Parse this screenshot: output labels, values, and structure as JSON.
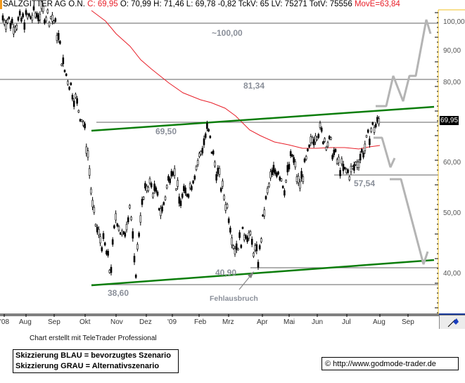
{
  "header": {
    "symbol": "SALZGITTER AG O.N.",
    "close_label": "C: 69,95",
    "quote_rest": "O: 70,99 H: 71,46 L: 69,78 -0,82 TckV: 65 LV: 75271 TotV: 75556",
    "moving_avg_label": "MovE=63,84"
  },
  "colors": {
    "price_bars": "#000000",
    "moving_average": "#e8202a",
    "trend_channel": "#0a7d0a",
    "horizontal_levels": "#808080",
    "scenario_sketch": "#b4b4b4",
    "axis_border": "#f0c020",
    "annotation_text": "#8a8f99"
  },
  "annotations": {
    "target_100": "~100,00",
    "resistance_8134": "81,34",
    "level_6950": "69,50",
    "support_5754": "57,54",
    "low_4090": "40,90",
    "low_3860": "38,60",
    "false_breakout": "Fehlausbruch"
  },
  "last_price_tag": "69,95",
  "footer": {
    "credit": "Chart erstellt mit TeleTrader Professional",
    "legend_blue": "Skizzierung BLAU = bevorzugtes Szenario",
    "legend_gray": "Skizzierung GRAU = Alternativszenario",
    "copyright": "© http://www.godmode-trader.de"
  },
  "icons": {
    "axis_tool": "pen-tool-icon"
  },
  "chart_data": {
    "type": "candlestick",
    "title": "SALZGITTER AG O.N.",
    "xlabel": "",
    "ylabel": "",
    "x_tick_labels": [
      "'08",
      "Aug",
      "Sep",
      "Okt",
      "Nov",
      "Dez",
      "'09",
      "Feb",
      "Mrz",
      "Apr",
      "Mai",
      "Jun",
      "Jul",
      "Aug",
      "Sep"
    ],
    "y_tick_labels": [
      "100,00",
      "90,00",
      "80,00",
      "60,00",
      "50,00",
      "40,00"
    ],
    "y_ticks": [
      100,
      90,
      80,
      60,
      50,
      40
    ],
    "ylim": [
      35,
      104
    ],
    "y_scale": "log",
    "grid": false,
    "quote": {
      "close": 69.95,
      "open": 70.99,
      "high": 71.46,
      "low": 69.78,
      "change": -0.82,
      "tick_volume": 65,
      "last_volume": 75271,
      "total_volume": 75556,
      "moving_average": 63.84
    },
    "approx_monthly_close": [
      {
        "month": "Jul 08",
        "value": 104
      },
      {
        "month": "Aug 08",
        "value": 101
      },
      {
        "month": "Sep 08",
        "value": 80
      },
      {
        "month": "Okt 08",
        "value": 47
      },
      {
        "month": "Nov 08",
        "value": 45
      },
      {
        "month": "Dez 08",
        "value": 55
      },
      {
        "month": "Jan 09",
        "value": 58
      },
      {
        "month": "Feb 09",
        "value": 58
      },
      {
        "month": "Mrz 09",
        "value": 44
      },
      {
        "month": "Apr 09",
        "value": 57
      },
      {
        "month": "Mai 09",
        "value": 62
      },
      {
        "month": "Jun 09",
        "value": 66
      },
      {
        "month": "Jul 09",
        "value": 64
      },
      {
        "month": "Aug 09",
        "value": 69.95
      }
    ],
    "horizontal_levels": [
      100.0,
      81.34,
      69.5,
      57.54,
      40.9,
      38.6
    ],
    "trend_channel": {
      "upper": [
        {
          "x": "Okt 08",
          "y": 67.5
        },
        {
          "x": "Sep 09",
          "y": 74.5
        }
      ],
      "lower": [
        {
          "x": "Okt 08",
          "y": 38.6
        },
        {
          "x": "Sep 09",
          "y": 41.3
        }
      ]
    },
    "moving_average_series": {
      "name": "MovE",
      "last": 63.84
    },
    "scenarios": [
      {
        "name": "bullish (grau)",
        "path": [
          71,
          71,
          80,
          75,
          81.34,
          81.34,
          100,
          96
        ]
      },
      {
        "name": "bearish (grau)",
        "path": [
          67,
          67,
          60,
          62,
          57.54,
          57.54,
          40.5,
          43
        ]
      }
    ],
    "legend": []
  }
}
